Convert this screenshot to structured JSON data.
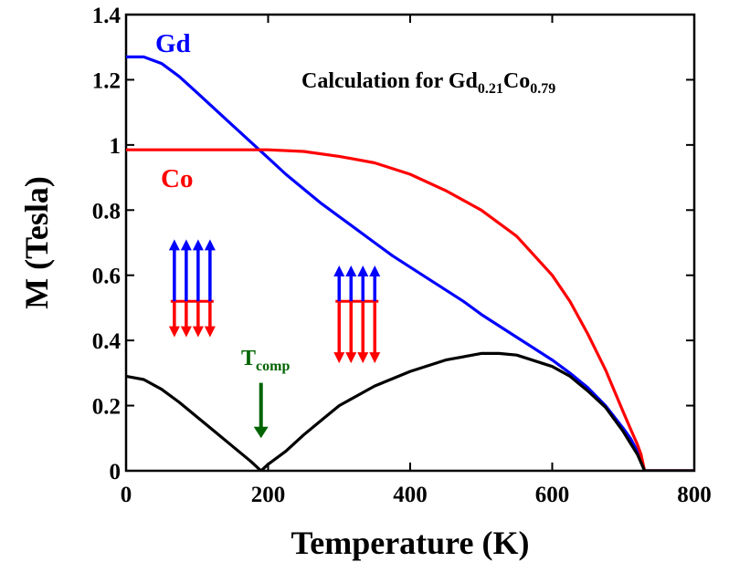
{
  "chart_data": {
    "type": "line",
    "title": "",
    "xlabel": "Temperature (K)",
    "ylabel": "M (Tesla)",
    "xlim": [
      0,
      800
    ],
    "ylim": [
      0,
      1.4
    ],
    "xticks": [
      0,
      200,
      400,
      600,
      800
    ],
    "xtick_labels": [
      "0",
      "200",
      "400",
      "600",
      "800"
    ],
    "yticks": [
      0,
      0.2,
      0.4,
      0.6,
      0.8,
      1,
      1.2,
      1.4
    ],
    "ytick_labels": [
      "0",
      "0.2",
      "0.4",
      "0.6",
      "0.8",
      "1",
      "1.2",
      "1.4"
    ],
    "grid": false,
    "series": [
      {
        "name": "Gd",
        "color": "#0000ff",
        "x": [
          0,
          25,
          50,
          75,
          100,
          125,
          150,
          175,
          200,
          225,
          250,
          275,
          300,
          325,
          350,
          375,
          400,
          425,
          450,
          475,
          500,
          525,
          550,
          575,
          600,
          625,
          650,
          675,
          700,
          710,
          720,
          730,
          760,
          800
        ],
        "y": [
          1.27,
          1.27,
          1.25,
          1.21,
          1.16,
          1.11,
          1.06,
          1.01,
          0.96,
          0.91,
          0.865,
          0.82,
          0.78,
          0.74,
          0.7,
          0.66,
          0.625,
          0.59,
          0.555,
          0.52,
          0.48,
          0.445,
          0.41,
          0.375,
          0.34,
          0.3,
          0.255,
          0.2,
          0.13,
          0.1,
          0.06,
          0.0,
          0.0,
          0.0
        ]
      },
      {
        "name": "Co",
        "color": "#ff0000",
        "x": [
          0,
          50,
          100,
          150,
          200,
          250,
          300,
          350,
          400,
          450,
          500,
          550,
          600,
          625,
          650,
          675,
          700,
          710,
          720,
          725,
          730,
          760,
          800
        ],
        "y": [
          0.985,
          0.985,
          0.985,
          0.985,
          0.985,
          0.98,
          0.965,
          0.945,
          0.91,
          0.86,
          0.8,
          0.72,
          0.6,
          0.52,
          0.42,
          0.31,
          0.18,
          0.13,
          0.08,
          0.05,
          0.0,
          0.0,
          0.0
        ]
      },
      {
        "name": "",
        "color": "#000000",
        "x": [
          0,
          25,
          50,
          75,
          100,
          125,
          150,
          175,
          190,
          200,
          225,
          250,
          275,
          300,
          325,
          350,
          400,
          450,
          500,
          525,
          550,
          600,
          625,
          650,
          675,
          700,
          710,
          720,
          730,
          760,
          800
        ],
        "y": [
          0.29,
          0.28,
          0.25,
          0.21,
          0.165,
          0.12,
          0.075,
          0.03,
          0.0,
          0.02,
          0.06,
          0.11,
          0.155,
          0.2,
          0.23,
          0.26,
          0.305,
          0.34,
          0.36,
          0.36,
          0.355,
          0.32,
          0.29,
          0.245,
          0.195,
          0.12,
          0.085,
          0.05,
          0.0,
          0.0,
          0.0
        ]
      }
    ],
    "annotations": {
      "gd_label": "Gd",
      "co_label": "Co",
      "calc_main": "Calculation for Gd",
      "calc_sub1": "0.21",
      "calc_mid": "Co",
      "calc_sub2": "0.79",
      "tcomp_main": "T",
      "tcomp_sub": "comp",
      "tcomp_color": "#006400"
    },
    "spin_diagrams": [
      {
        "blue_arrows": 4,
        "red_arrows": 4,
        "blue_length": 0.19,
        "red_length": 0.11
      },
      {
        "blue_arrows": 4,
        "red_arrows": 4,
        "blue_length": 0.11,
        "red_length": 0.19
      }
    ]
  }
}
